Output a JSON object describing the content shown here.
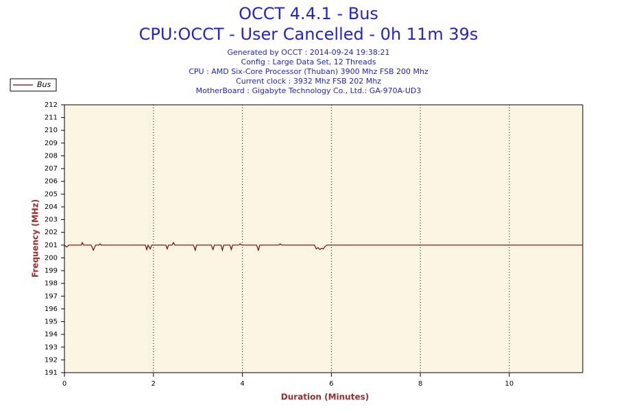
{
  "chart_data": {
    "type": "line",
    "title": "OCCT 4.4.1 - Bus",
    "subtitle": "CPU:OCCT - User Cancelled - 0h 11m 39s",
    "info": [
      "Generated by OCCT : 2014-09-24 19:38:21",
      "Config : Large Data Set, 12 Threads",
      "CPU : AMD Six-Core Processor (Thuban) 3900 Mhz FSB 200 Mhz",
      "Current clock : 3932 Mhz FSB 202 Mhz",
      "MotherBoard : Gigabyte Technology Co., Ltd.: GA-970A-UD3"
    ],
    "xlabel": "Duration (Minutes)",
    "ylabel": "Frequency (MHz)",
    "x": [
      0,
      0.05,
      0.1,
      0.2,
      0.3,
      0.38,
      0.4,
      0.43,
      0.6,
      0.65,
      0.7,
      0.78,
      0.8,
      0.83,
      1.2,
      1.6,
      1.82,
      1.85,
      1.88,
      1.93,
      1.96,
      2.0,
      2.28,
      2.31,
      2.34,
      2.42,
      2.45,
      2.48,
      2.9,
      2.94,
      2.97,
      3.3,
      3.34,
      3.37,
      3.52,
      3.55,
      3.58,
      3.72,
      3.75,
      3.78,
      3.92,
      3.95,
      3.98,
      4.32,
      4.36,
      4.39,
      4.82,
      4.85,
      4.88,
      5.5,
      5.62,
      5.66,
      5.7,
      5.74,
      5.78,
      5.82,
      5.86,
      5.9,
      6.5,
      7.5,
      8.5,
      9.5,
      10.5,
      11.65
    ],
    "series": [
      {
        "name": "Bus",
        "color": "#800000",
        "values": [
          201,
          200.85,
          201,
          201,
          201,
          201,
          201.2,
          201,
          201,
          200.6,
          201,
          201,
          201.1,
          201,
          201,
          201,
          201,
          200.65,
          201,
          200.7,
          201,
          201,
          201,
          200.7,
          201,
          201,
          201.2,
          201,
          201,
          200.6,
          201,
          201,
          200.65,
          201,
          201,
          200.6,
          201,
          201,
          200.65,
          201,
          201,
          201.1,
          201,
          201,
          200.6,
          201,
          201,
          201.1,
          201,
          201,
          201,
          200.7,
          200.8,
          200.65,
          200.75,
          200.7,
          200.9,
          201,
          201,
          201,
          201,
          201,
          201,
          201
        ]
      }
    ],
    "xlim": [
      0,
      11.65
    ],
    "xticks": [
      0,
      2,
      4,
      6,
      8,
      10
    ],
    "ylim": [
      191,
      212
    ],
    "yticks": [
      191,
      192,
      193,
      194,
      195,
      196,
      197,
      198,
      199,
      200,
      201,
      202,
      203,
      204,
      205,
      206,
      207,
      208,
      209,
      210,
      211,
      212
    ],
    "grid": true,
    "legend": "top-left"
  }
}
